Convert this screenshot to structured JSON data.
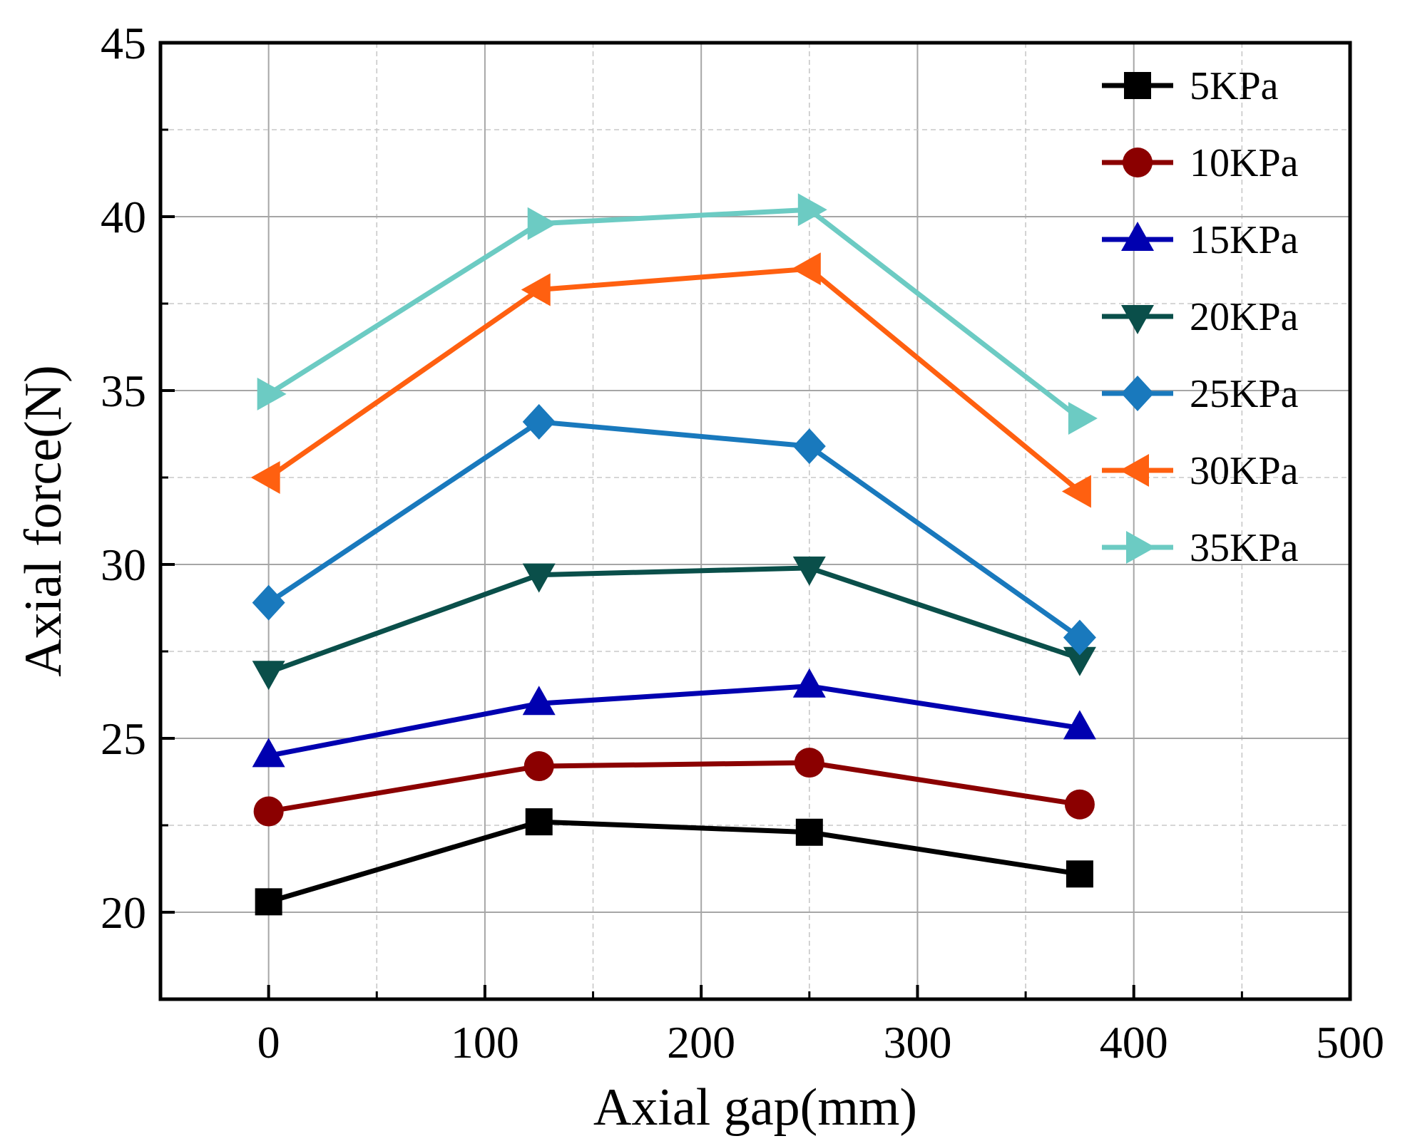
{
  "chart_data": {
    "type": "line",
    "title": "",
    "xlabel": "Axial gap(mm)",
    "ylabel": "Axial force(N)",
    "xlim": [
      -50,
      500
    ],
    "ylim": [
      17.5,
      45
    ],
    "x_ticks": [
      0,
      100,
      200,
      300,
      400,
      500
    ],
    "y_ticks": [
      20,
      25,
      30,
      35,
      40,
      45
    ],
    "grid": true,
    "legend_position": "top-right",
    "x": [
      0,
      125,
      250,
      375
    ],
    "series": [
      {
        "name": "5KPa",
        "marker": "square",
        "color": "#000000",
        "values": [
          20.3,
          22.6,
          22.3,
          21.1
        ]
      },
      {
        "name": "10KPa",
        "marker": "circle",
        "color": "#8b0000",
        "values": [
          22.9,
          24.2,
          24.3,
          23.1
        ]
      },
      {
        "name": "15KPa",
        "marker": "triangle-up",
        "color": "#0000b0",
        "values": [
          24.5,
          26.0,
          26.5,
          25.3
        ]
      },
      {
        "name": "20KPa",
        "marker": "triangle-down",
        "color": "#0a4f4a",
        "values": [
          26.9,
          29.7,
          29.9,
          27.3
        ]
      },
      {
        "name": "25KPa",
        "marker": "diamond",
        "color": "#1979bd",
        "values": [
          28.9,
          34.1,
          33.4,
          27.9
        ]
      },
      {
        "name": "30KPa",
        "marker": "triangle-left",
        "color": "#ff6010",
        "values": [
          32.5,
          37.9,
          38.5,
          32.1
        ]
      },
      {
        "name": "35KPa",
        "marker": "triangle-right",
        "color": "#6ccbc3",
        "values": [
          34.9,
          39.8,
          40.2,
          34.2
        ]
      }
    ]
  }
}
